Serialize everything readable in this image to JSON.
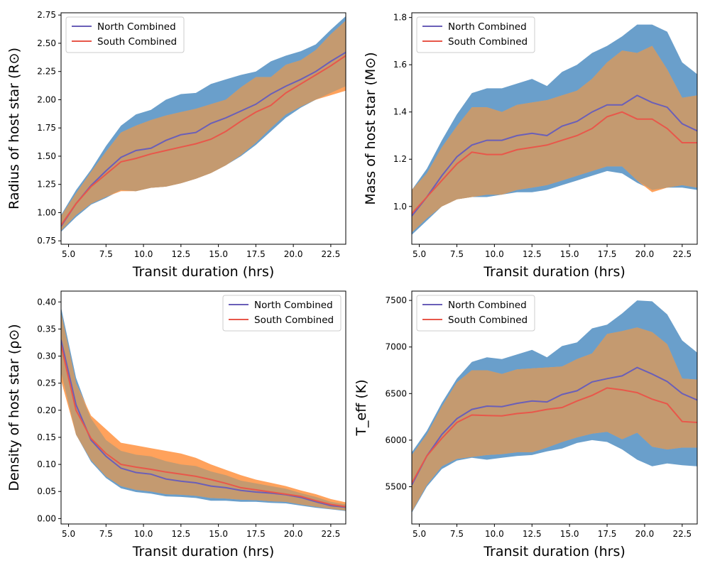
{
  "figure": {
    "legend_labels": [
      "North Combined",
      "South Combined"
    ]
  },
  "colors": {
    "north_band": "#6a9fcb",
    "south_band": "#ffa25c",
    "overlap_band": "#c49a70",
    "north_line": "#6a5fb8",
    "south_line": "#e8574a"
  },
  "chart_data": [
    {
      "type": "area",
      "title": "",
      "xlabel": "Transit duration (hrs)",
      "ylabel": "Radius of host star (R⊙)",
      "xlim": [
        4.5,
        23.5
      ],
      "ylim": [
        0.72,
        2.77
      ],
      "xticks": [
        "5.0",
        "7.5",
        "10.0",
        "12.5",
        "15.0",
        "17.5",
        "20.0",
        "22.5"
      ],
      "yticks": [
        "0.75",
        "1.00",
        "1.25",
        "1.50",
        "1.75",
        "2.00",
        "2.25",
        "2.50",
        "2.75"
      ],
      "legend": "upper-left",
      "x": [
        4.5,
        5.5,
        6.5,
        7.5,
        8.5,
        9.5,
        10.5,
        11.5,
        12.5,
        13.5,
        14.5,
        15.5,
        16.5,
        17.5,
        18.5,
        19.5,
        20.5,
        21.5,
        22.5,
        23.5
      ],
      "series": [
        {
          "name": "North Combined",
          "median": [
            0.88,
            1.08,
            1.24,
            1.37,
            1.49,
            1.55,
            1.57,
            1.64,
            1.69,
            1.71,
            1.79,
            1.84,
            1.9,
            1.96,
            2.05,
            2.12,
            2.18,
            2.25,
            2.34,
            2.42
          ],
          "upper": [
            0.98,
            1.2,
            1.38,
            1.59,
            1.77,
            1.87,
            1.91,
            2.0,
            2.05,
            2.06,
            2.14,
            2.18,
            2.22,
            2.25,
            2.34,
            2.39,
            2.43,
            2.49,
            2.62,
            2.74
          ],
          "lower": [
            0.83,
            0.96,
            1.07,
            1.13,
            1.2,
            1.19,
            1.22,
            1.23,
            1.26,
            1.3,
            1.35,
            1.42,
            1.5,
            1.6,
            1.72,
            1.84,
            1.93,
            2.0,
            2.06,
            2.12
          ]
        },
        {
          "name": "South Combined",
          "median": [
            0.89,
            1.08,
            1.23,
            1.34,
            1.45,
            1.48,
            1.52,
            1.55,
            1.58,
            1.61,
            1.65,
            1.72,
            1.81,
            1.89,
            1.95,
            2.06,
            2.14,
            2.22,
            2.3,
            2.39
          ],
          "upper": [
            0.97,
            1.17,
            1.36,
            1.54,
            1.71,
            1.77,
            1.82,
            1.86,
            1.89,
            1.92,
            1.96,
            2.0,
            2.11,
            2.2,
            2.2,
            2.31,
            2.35,
            2.44,
            2.58,
            2.7
          ],
          "lower": [
            0.84,
            0.98,
            1.08,
            1.14,
            1.19,
            1.19,
            1.22,
            1.23,
            1.26,
            1.3,
            1.35,
            1.42,
            1.51,
            1.62,
            1.75,
            1.87,
            1.94,
            2.0,
            2.04,
            2.08
          ]
        }
      ]
    },
    {
      "type": "area",
      "title": "",
      "xlabel": "Transit duration (hrs)",
      "ylabel": "Mass of host star (M⊙)",
      "xlim": [
        4.5,
        23.5
      ],
      "ylim": [
        0.84,
        1.82
      ],
      "xticks": [
        "5.0",
        "7.5",
        "10.0",
        "12.5",
        "15.0",
        "17.5",
        "20.0",
        "22.5"
      ],
      "yticks": [
        "1.0",
        "1.2",
        "1.4",
        "1.6",
        "1.8"
      ],
      "legend": "upper-left",
      "x": [
        4.5,
        5.5,
        6.5,
        7.5,
        8.5,
        9.5,
        10.5,
        11.5,
        12.5,
        13.5,
        14.5,
        15.5,
        16.5,
        17.5,
        18.5,
        19.5,
        20.5,
        21.5,
        22.5,
        23.5
      ],
      "series": [
        {
          "name": "North Combined",
          "median": [
            0.96,
            1.04,
            1.13,
            1.21,
            1.26,
            1.28,
            1.28,
            1.3,
            1.31,
            1.3,
            1.34,
            1.36,
            1.4,
            1.43,
            1.43,
            1.47,
            1.44,
            1.42,
            1.35,
            1.32
          ],
          "upper": [
            1.07,
            1.16,
            1.28,
            1.39,
            1.48,
            1.5,
            1.5,
            1.52,
            1.54,
            1.51,
            1.57,
            1.6,
            1.65,
            1.68,
            1.72,
            1.77,
            1.77,
            1.74,
            1.61,
            1.56
          ],
          "lower": [
            0.88,
            0.94,
            1.0,
            1.03,
            1.04,
            1.04,
            1.05,
            1.06,
            1.06,
            1.07,
            1.09,
            1.11,
            1.13,
            1.15,
            1.14,
            1.1,
            1.07,
            1.08,
            1.08,
            1.07
          ]
        },
        {
          "name": "South Combined",
          "median": [
            0.97,
            1.04,
            1.11,
            1.18,
            1.23,
            1.22,
            1.22,
            1.24,
            1.25,
            1.26,
            1.28,
            1.3,
            1.33,
            1.38,
            1.4,
            1.37,
            1.37,
            1.33,
            1.27,
            1.27
          ],
          "upper": [
            1.07,
            1.14,
            1.25,
            1.34,
            1.42,
            1.42,
            1.4,
            1.43,
            1.44,
            1.45,
            1.47,
            1.49,
            1.54,
            1.61,
            1.66,
            1.65,
            1.68,
            1.58,
            1.46,
            1.47
          ],
          "lower": [
            0.89,
            0.95,
            1.0,
            1.03,
            1.04,
            1.05,
            1.05,
            1.07,
            1.08,
            1.09,
            1.11,
            1.13,
            1.15,
            1.17,
            1.17,
            1.11,
            1.06,
            1.08,
            1.09,
            1.08
          ]
        }
      ]
    },
    {
      "type": "area",
      "title": "",
      "xlabel": "Transit duration (hrs)",
      "ylabel": "Density of host star (ρ⊙)",
      "xlim": [
        4.5,
        23.5
      ],
      "ylim": [
        -0.01,
        0.42
      ],
      "xticks": [
        "5.0",
        "7.5",
        "10.0",
        "12.5",
        "15.0",
        "17.5",
        "20.0",
        "22.5"
      ],
      "yticks": [
        "0.00",
        "0.05",
        "0.10",
        "0.15",
        "0.20",
        "0.25",
        "0.30",
        "0.35",
        "0.40"
      ],
      "legend": "upper-right",
      "x": [
        4.5,
        5.5,
        6.5,
        7.5,
        8.5,
        9.5,
        10.5,
        11.5,
        12.5,
        13.5,
        14.5,
        15.5,
        16.5,
        17.5,
        18.5,
        19.5,
        20.5,
        21.5,
        22.5,
        23.5
      ],
      "series": [
        {
          "name": "North Combined",
          "median": [
            0.33,
            0.21,
            0.145,
            0.115,
            0.093,
            0.085,
            0.082,
            0.073,
            0.069,
            0.066,
            0.06,
            0.057,
            0.052,
            0.049,
            0.047,
            0.044,
            0.039,
            0.031,
            0.024,
            0.021
          ],
          "upper": [
            0.39,
            0.26,
            0.185,
            0.145,
            0.125,
            0.118,
            0.115,
            0.106,
            0.1,
            0.097,
            0.087,
            0.08,
            0.07,
            0.065,
            0.06,
            0.055,
            0.047,
            0.04,
            0.031,
            0.026
          ],
          "lower": [
            0.27,
            0.155,
            0.105,
            0.075,
            0.056,
            0.049,
            0.046,
            0.041,
            0.04,
            0.038,
            0.033,
            0.033,
            0.031,
            0.031,
            0.029,
            0.028,
            0.024,
            0.02,
            0.017,
            0.014
          ]
        },
        {
          "name": "South Combined",
          "median": [
            0.32,
            0.2,
            0.148,
            0.12,
            0.1,
            0.095,
            0.091,
            0.086,
            0.082,
            0.078,
            0.072,
            0.065,
            0.057,
            0.053,
            0.049,
            0.045,
            0.041,
            0.033,
            0.026,
            0.022
          ],
          "upper": [
            0.38,
            0.25,
            0.19,
            0.165,
            0.14,
            0.135,
            0.13,
            0.125,
            0.12,
            0.112,
            0.1,
            0.09,
            0.08,
            0.072,
            0.066,
            0.06,
            0.052,
            0.045,
            0.036,
            0.03
          ],
          "lower": [
            0.255,
            0.155,
            0.108,
            0.078,
            0.06,
            0.053,
            0.05,
            0.045,
            0.044,
            0.042,
            0.038,
            0.037,
            0.035,
            0.034,
            0.032,
            0.031,
            0.026,
            0.022,
            0.018,
            0.015
          ]
        }
      ]
    },
    {
      "type": "area",
      "title": "",
      "xlabel": "Transit duration (hrs)",
      "ylabel": "T_eff (K)",
      "xlim": [
        4.5,
        23.5
      ],
      "ylim": [
        5100,
        7600
      ],
      "xticks": [
        "5.0",
        "7.5",
        "10.0",
        "12.5",
        "15.0",
        "17.5",
        "20.0",
        "22.5"
      ],
      "yticks": [
        "5500",
        "6000",
        "6500",
        "7000",
        "7500"
      ],
      "legend": "upper-left",
      "x": [
        4.5,
        5.5,
        6.5,
        7.5,
        8.5,
        9.5,
        10.5,
        11.5,
        12.5,
        13.5,
        14.5,
        15.5,
        16.5,
        17.5,
        18.5,
        19.5,
        20.5,
        21.5,
        22.5,
        23.5
      ],
      "series": [
        {
          "name": "North Combined",
          "median": [
            5520,
            5830,
            6060,
            6230,
            6330,
            6365,
            6360,
            6395,
            6420,
            6410,
            6490,
            6530,
            6625,
            6660,
            6690,
            6780,
            6710,
            6630,
            6500,
            6430
          ],
          "upper": [
            5870,
            6100,
            6400,
            6660,
            6840,
            6890,
            6870,
            6920,
            6970,
            6890,
            7010,
            7050,
            7200,
            7240,
            7360,
            7500,
            7490,
            7350,
            7070,
            6940
          ],
          "lower": [
            5220,
            5500,
            5690,
            5780,
            5810,
            5790,
            5810,
            5830,
            5840,
            5880,
            5910,
            5970,
            6000,
            5980,
            5900,
            5790,
            5720,
            5750,
            5730,
            5720
          ]
        },
        {
          "name": "South Combined",
          "median": [
            5540,
            5830,
            6020,
            6190,
            6270,
            6265,
            6260,
            6285,
            6300,
            6330,
            6350,
            6420,
            6480,
            6560,
            6540,
            6510,
            6440,
            6390,
            6200,
            6190
          ],
          "upper": [
            5840,
            6060,
            6360,
            6620,
            6750,
            6750,
            6710,
            6760,
            6770,
            6780,
            6790,
            6870,
            6930,
            7140,
            7170,
            7210,
            7160,
            7030,
            6660,
            6650
          ],
          "lower": [
            5230,
            5520,
            5720,
            5800,
            5820,
            5840,
            5850,
            5870,
            5870,
            5920,
            5980,
            6030,
            6070,
            6090,
            6010,
            6080,
            5930,
            5900,
            5920,
            5920
          ]
        }
      ]
    }
  ]
}
